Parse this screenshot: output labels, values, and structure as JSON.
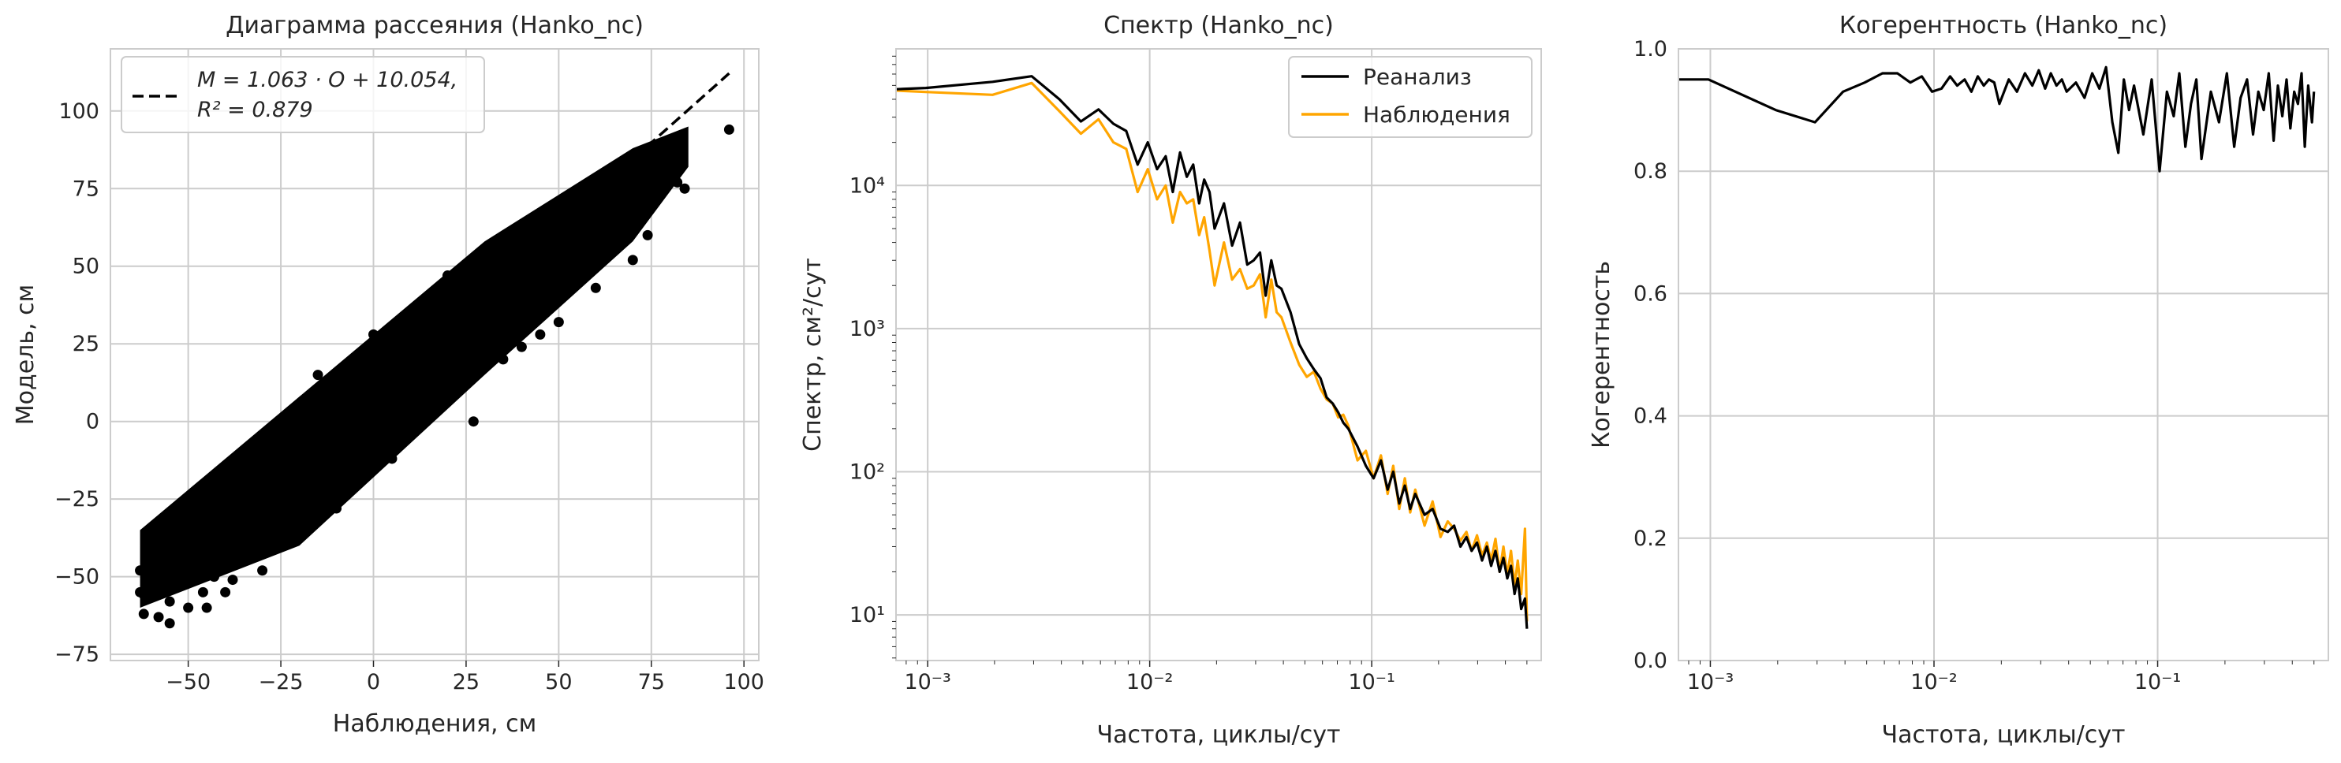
{
  "chart_data": [
    {
      "id": "scatter",
      "type": "scatter",
      "title": "Диаграмма рассеяния (Hanko_nc)",
      "xlabel": "Наблюдения, см",
      "ylabel": "Модель, см",
      "xlim": [
        -71,
        104
      ],
      "ylim": [
        -77,
        120
      ],
      "xticks": [
        -50,
        -25,
        0,
        25,
        50,
        75,
        100
      ],
      "xtick_labels": [
        "−50",
        "−25",
        "0",
        "25",
        "50",
        "75",
        "100"
      ],
      "yticks": [
        -75,
        -50,
        -25,
        0,
        25,
        50,
        75,
        100
      ],
      "ytick_labels": [
        "−75",
        "−50",
        "−25",
        "0",
        "25",
        "50",
        "75",
        "100"
      ],
      "grid": true,
      "legend_position": "top-left",
      "legend_line1": "M = 1.063 · O + 10.054,",
      "legend_line2": "R² = 0.879",
      "fit": {
        "slope": 1.063,
        "intercept": 10.054,
        "r2": 0.879,
        "x_range": [
          -63,
          96
        ]
      },
      "points": [
        [
          -63,
          -55
        ],
        [
          -63,
          -48
        ],
        [
          -62,
          -62
        ],
        [
          -61,
          -40
        ],
        [
          -60,
          -53
        ],
        [
          -59,
          -46
        ],
        [
          -58,
          -63
        ],
        [
          -57,
          -50
        ],
        [
          -56,
          -41
        ],
        [
          -55,
          -58
        ],
        [
          -54,
          -47
        ],
        [
          -53,
          -36
        ],
        [
          -52,
          -52
        ],
        [
          -51,
          -44
        ],
        [
          -50,
          -60
        ],
        [
          -49,
          -39
        ],
        [
          -48,
          -48
        ],
        [
          -47,
          -33
        ],
        [
          -46,
          -55
        ],
        [
          -45,
          -42
        ],
        [
          -44,
          -30
        ],
        [
          -43,
          -50
        ],
        [
          -42,
          -37
        ],
        [
          -41,
          -26
        ],
        [
          -40,
          -45
        ],
        [
          -39,
          -32
        ],
        [
          -38,
          -51
        ],
        [
          -37,
          -22
        ],
        [
          -36,
          -38
        ],
        [
          -35,
          -28
        ],
        [
          -34,
          -44
        ],
        [
          -33,
          -18
        ],
        [
          -32,
          -33
        ],
        [
          -31,
          -24
        ],
        [
          -30,
          -40
        ],
        [
          -29,
          -13
        ],
        [
          -28,
          -28
        ],
        [
          -27,
          -19
        ],
        [
          -26,
          -34
        ],
        [
          -25,
          -9
        ],
        [
          -24,
          -23
        ],
        [
          -23,
          -15
        ],
        [
          -22,
          -30
        ],
        [
          -21,
          -5
        ],
        [
          -20,
          -18
        ],
        [
          -19,
          -10
        ],
        [
          -18,
          -25
        ],
        [
          -17,
          0
        ],
        [
          -16,
          -14
        ],
        [
          -15,
          -6
        ],
        [
          -14,
          -20
        ],
        [
          -13,
          4
        ],
        [
          -12,
          -9
        ],
        [
          -11,
          -1
        ],
        [
          -10,
          -15
        ],
        [
          -9,
          8
        ],
        [
          -8,
          -4
        ],
        [
          -7,
          3
        ],
        [
          -6,
          -10
        ],
        [
          -5,
          13
        ],
        [
          -4,
          1
        ],
        [
          -3,
          8
        ],
        [
          -2,
          -6
        ],
        [
          -1,
          17
        ],
        [
          0,
          5
        ],
        [
          1,
          12
        ],
        [
          2,
          -2
        ],
        [
          3,
          21
        ],
        [
          4,
          9
        ],
        [
          5,
          16
        ],
        [
          6,
          2
        ],
        [
          7,
          25
        ],
        [
          8,
          14
        ],
        [
          9,
          20
        ],
        [
          10,
          6
        ],
        [
          11,
          29
        ],
        [
          12,
          18
        ],
        [
          13,
          25
        ],
        [
          14,
          10
        ],
        [
          15,
          33
        ],
        [
          16,
          22
        ],
        [
          17,
          29
        ],
        [
          18,
          14
        ],
        [
          19,
          37
        ],
        [
          20,
          26
        ],
        [
          21,
          33
        ],
        [
          22,
          19
        ],
        [
          23,
          41
        ],
        [
          24,
          30
        ],
        [
          25,
          37
        ],
        [
          26,
          23
        ],
        [
          27,
          45
        ],
        [
          28,
          34
        ],
        [
          29,
          41
        ],
        [
          30,
          27
        ],
        [
          31,
          49
        ],
        [
          32,
          39
        ],
        [
          33,
          46
        ],
        [
          34,
          31
        ],
        [
          35,
          53
        ],
        [
          36,
          43
        ],
        [
          37,
          50
        ],
        [
          38,
          36
        ],
        [
          39,
          57
        ],
        [
          40,
          47
        ],
        [
          41,
          54
        ],
        [
          42,
          40
        ],
        [
          43,
          61
        ],
        [
          44,
          51
        ],
        [
          45,
          58
        ],
        [
          46,
          44
        ],
        [
          47,
          65
        ],
        [
          48,
          55
        ],
        [
          49,
          62
        ],
        [
          50,
          48
        ],
        [
          52,
          60
        ],
        [
          54,
          66
        ],
        [
          56,
          52
        ],
        [
          58,
          64
        ],
        [
          60,
          70
        ],
        [
          62,
          56
        ],
        [
          64,
          68
        ],
        [
          66,
          60
        ],
        [
          68,
          72
        ],
        [
          70,
          62
        ],
        [
          72,
          75
        ],
        [
          74,
          60
        ],
        [
          77,
          80
        ],
        [
          79,
          76
        ],
        [
          80,
          90
        ],
        [
          82,
          77
        ],
        [
          84,
          75
        ],
        [
          96,
          94
        ],
        [
          -20,
          -35
        ],
        [
          -30,
          -48
        ],
        [
          -10,
          -28
        ],
        [
          27,
          0
        ],
        [
          -40,
          -55
        ],
        [
          -45,
          -60
        ],
        [
          50,
          32
        ],
        [
          40,
          24
        ],
        [
          -55,
          -65
        ],
        [
          60,
          43
        ],
        [
          30,
          44
        ],
        [
          45,
          28
        ],
        [
          20,
          47
        ],
        [
          10,
          35
        ],
        [
          0,
          28
        ],
        [
          -15,
          15
        ],
        [
          55,
          73
        ],
        [
          -25,
          -5
        ],
        [
          65,
          78
        ],
        [
          35,
          20
        ],
        [
          -35,
          -12
        ],
        [
          15,
          40
        ],
        [
          5,
          -12
        ],
        [
          -5,
          20
        ],
        [
          25,
          50
        ],
        [
          -50,
          -30
        ],
        [
          70,
          52
        ]
      ],
      "series_color": "#000000",
      "fit_color": "#000000"
    },
    {
      "id": "spectrum",
      "type": "line",
      "title": "Спектр (Hanko_nc)",
      "xlabel": "Частота, циклы/сут",
      "ylabel": "Спектр, см²/сут",
      "xscale": "log",
      "yscale": "log",
      "xlim": [
        0.00072,
        0.58
      ],
      "ylim": [
        4.8,
        90000
      ],
      "xticks": [
        0.001,
        0.01,
        0.1
      ],
      "xtick_labels": [
        "10⁻³",
        "10⁻²",
        "10⁻¹"
      ],
      "yticks": [
        10,
        100,
        1000,
        10000
      ],
      "ytick_labels": [
        "10¹",
        "10²",
        "10³",
        "10⁴"
      ],
      "grid": true,
      "legend_position": "top-right",
      "series": [
        {
          "name": "Реанализ",
          "color": "#000000",
          "x": [
            0.00072,
            0.00098,
            0.00196,
            0.00294,
            0.00392,
            0.0049,
            0.00588,
            0.00686,
            0.00784,
            0.00882,
            0.0098,
            0.0108,
            0.0118,
            0.0127,
            0.0137,
            0.0147,
            0.0157,
            0.0167,
            0.0176,
            0.0186,
            0.0196,
            0.0216,
            0.0235,
            0.0255,
            0.0275,
            0.0294,
            0.0314,
            0.0333,
            0.0353,
            0.0373,
            0.0392,
            0.0431,
            0.0471,
            0.051,
            0.0549,
            0.0588,
            0.0627,
            0.0667,
            0.0706,
            0.0745,
            0.0784,
            0.0863,
            0.0941,
            0.102,
            0.11,
            0.118,
            0.125,
            0.133,
            0.141,
            0.149,
            0.157,
            0.173,
            0.188,
            0.204,
            0.22,
            0.235,
            0.251,
            0.267,
            0.282,
            0.298,
            0.314,
            0.33,
            0.345,
            0.361,
            0.377,
            0.392,
            0.408,
            0.424,
            0.44,
            0.455,
            0.471,
            0.49,
            0.5
          ],
          "y": [
            47000,
            48000,
            53000,
            58000,
            40000,
            28000,
            34000,
            27000,
            24000,
            14000,
            20000,
            13000,
            16000,
            9000,
            17000,
            11500,
            14000,
            7500,
            11000,
            9000,
            5000,
            7500,
            3800,
            5500,
            2800,
            3000,
            3400,
            1700,
            3000,
            2000,
            1900,
            1300,
            780,
            620,
            520,
            450,
            330,
            300,
            260,
            220,
            200,
            150,
            110,
            90,
            120,
            75,
            100,
            60,
            80,
            55,
            70,
            50,
            55,
            40,
            38,
            42,
            30,
            35,
            28,
            32,
            24,
            30,
            22,
            28,
            20,
            25,
            18,
            22,
            14,
            18,
            11,
            13,
            8
          ]
        },
        {
          "name": "Наблюдения",
          "color": "#ffa500",
          "x": [
            0.00072,
            0.00098,
            0.00196,
            0.00294,
            0.00392,
            0.0049,
            0.00588,
            0.00686,
            0.00784,
            0.00882,
            0.0098,
            0.0108,
            0.0118,
            0.0127,
            0.0137,
            0.0147,
            0.0157,
            0.0167,
            0.0176,
            0.0186,
            0.0196,
            0.0216,
            0.0235,
            0.0255,
            0.0275,
            0.0294,
            0.0314,
            0.0333,
            0.0353,
            0.0373,
            0.0392,
            0.0431,
            0.0471,
            0.051,
            0.0549,
            0.0588,
            0.0627,
            0.0667,
            0.0706,
            0.0745,
            0.0784,
            0.0863,
            0.0941,
            0.102,
            0.11,
            0.118,
            0.125,
            0.133,
            0.141,
            0.149,
            0.157,
            0.173,
            0.188,
            0.204,
            0.22,
            0.235,
            0.251,
            0.267,
            0.282,
            0.298,
            0.314,
            0.33,
            0.345,
            0.361,
            0.377,
            0.392,
            0.408,
            0.424,
            0.44,
            0.455,
            0.471,
            0.49,
            0.5
          ],
          "y": [
            46000,
            45000,
            43000,
            52000,
            33000,
            23000,
            29000,
            20000,
            18000,
            9000,
            13000,
            8000,
            10000,
            5500,
            9000,
            7500,
            8000,
            4500,
            6000,
            3500,
            2000,
            4000,
            2200,
            2600,
            1900,
            2000,
            2400,
            1200,
            2200,
            1300,
            1200,
            800,
            560,
            460,
            500,
            380,
            320,
            300,
            240,
            250,
            210,
            120,
            140,
            90,
            130,
            70,
            110,
            55,
            90,
            52,
            75,
            42,
            62,
            35,
            45,
            40,
            33,
            38,
            28,
            36,
            26,
            32,
            24,
            34,
            20,
            30,
            19,
            28,
            16,
            24,
            14,
            40,
            9
          ]
        }
      ]
    },
    {
      "id": "coherence",
      "type": "line",
      "title": "Когерентность (Hanko_nc)",
      "xlabel": "Частота, циклы/сут",
      "ylabel": "Когерентность",
      "xscale": "log",
      "xlim": [
        0.00072,
        0.58
      ],
      "ylim": [
        0,
        1
      ],
      "xticks": [
        0.001,
        0.01,
        0.1
      ],
      "xtick_labels": [
        "10⁻³",
        "10⁻²",
        "10⁻¹"
      ],
      "yticks": [
        0,
        0.2,
        0.4,
        0.6,
        0.8,
        1.0
      ],
      "ytick_labels": [
        "0.0",
        "0.2",
        "0.4",
        "0.6",
        "0.8",
        "1.0"
      ],
      "grid": true,
      "series": [
        {
          "color": "#000000",
          "x": [
            0.00072,
            0.00098,
            0.00196,
            0.00294,
            0.00392,
            0.0049,
            0.00588,
            0.00686,
            0.00784,
            0.00882,
            0.0098,
            0.0108,
            0.0118,
            0.0127,
            0.0137,
            0.0147,
            0.0157,
            0.0167,
            0.0176,
            0.0186,
            0.0196,
            0.0216,
            0.0235,
            0.0255,
            0.0275,
            0.0294,
            0.0314,
            0.0333,
            0.0353,
            0.0373,
            0.0392,
            0.0431,
            0.0471,
            0.051,
            0.0549,
            0.0588,
            0.0627,
            0.0667,
            0.0706,
            0.0745,
            0.0784,
            0.0863,
            0.0941,
            0.102,
            0.11,
            0.118,
            0.125,
            0.133,
            0.141,
            0.149,
            0.157,
            0.173,
            0.188,
            0.204,
            0.22,
            0.235,
            0.251,
            0.267,
            0.282,
            0.298,
            0.314,
            0.33,
            0.345,
            0.361,
            0.377,
            0.392,
            0.408,
            0.424,
            0.44,
            0.455,
            0.471,
            0.49,
            0.5
          ],
          "y": [
            0.95,
            0.95,
            0.9,
            0.88,
            0.93,
            0.945,
            0.96,
            0.96,
            0.945,
            0.955,
            0.93,
            0.935,
            0.955,
            0.94,
            0.95,
            0.93,
            0.955,
            0.94,
            0.95,
            0.945,
            0.91,
            0.95,
            0.93,
            0.96,
            0.94,
            0.965,
            0.935,
            0.96,
            0.94,
            0.95,
            0.93,
            0.945,
            0.92,
            0.96,
            0.935,
            0.97,
            0.88,
            0.83,
            0.95,
            0.9,
            0.94,
            0.86,
            0.95,
            0.8,
            0.93,
            0.89,
            0.96,
            0.84,
            0.91,
            0.95,
            0.82,
            0.93,
            0.88,
            0.96,
            0.84,
            0.92,
            0.95,
            0.86,
            0.93,
            0.9,
            0.96,
            0.85,
            0.94,
            0.89,
            0.95,
            0.87,
            0.93,
            0.91,
            0.96,
            0.84,
            0.94,
            0.88,
            0.93
          ]
        }
      ]
    }
  ]
}
